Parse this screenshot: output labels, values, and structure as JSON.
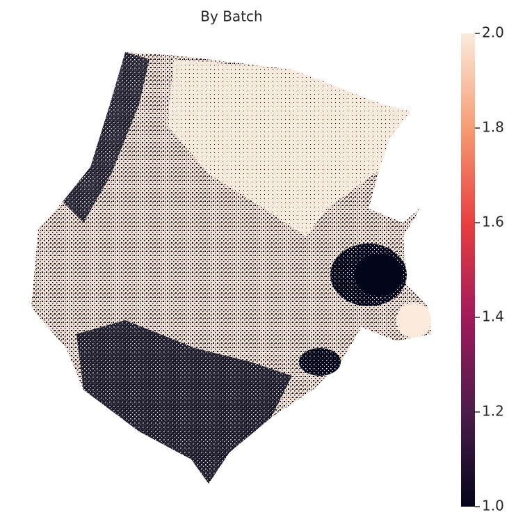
{
  "chart_data": {
    "type": "scatter",
    "title": "By Batch",
    "colorbar": {
      "clim": [
        1,
        2
      ],
      "cticks": [
        {
          "value": 1,
          "label": "1.0"
        },
        {
          "value": 1.2,
          "label": "1.2"
        },
        {
          "value": 1.4,
          "label": "1.4"
        },
        {
          "value": 1.6,
          "label": "1.6"
        },
        {
          "value": 1.8,
          "label": "1.8"
        },
        {
          "value": 2,
          "label": "2.0"
        }
      ],
      "colormap": [
        "#03051a",
        "#4c1d4b",
        "#a11a5b",
        "#e83f3f",
        "#f69c73",
        "#faebdd"
      ]
    }
  }
}
